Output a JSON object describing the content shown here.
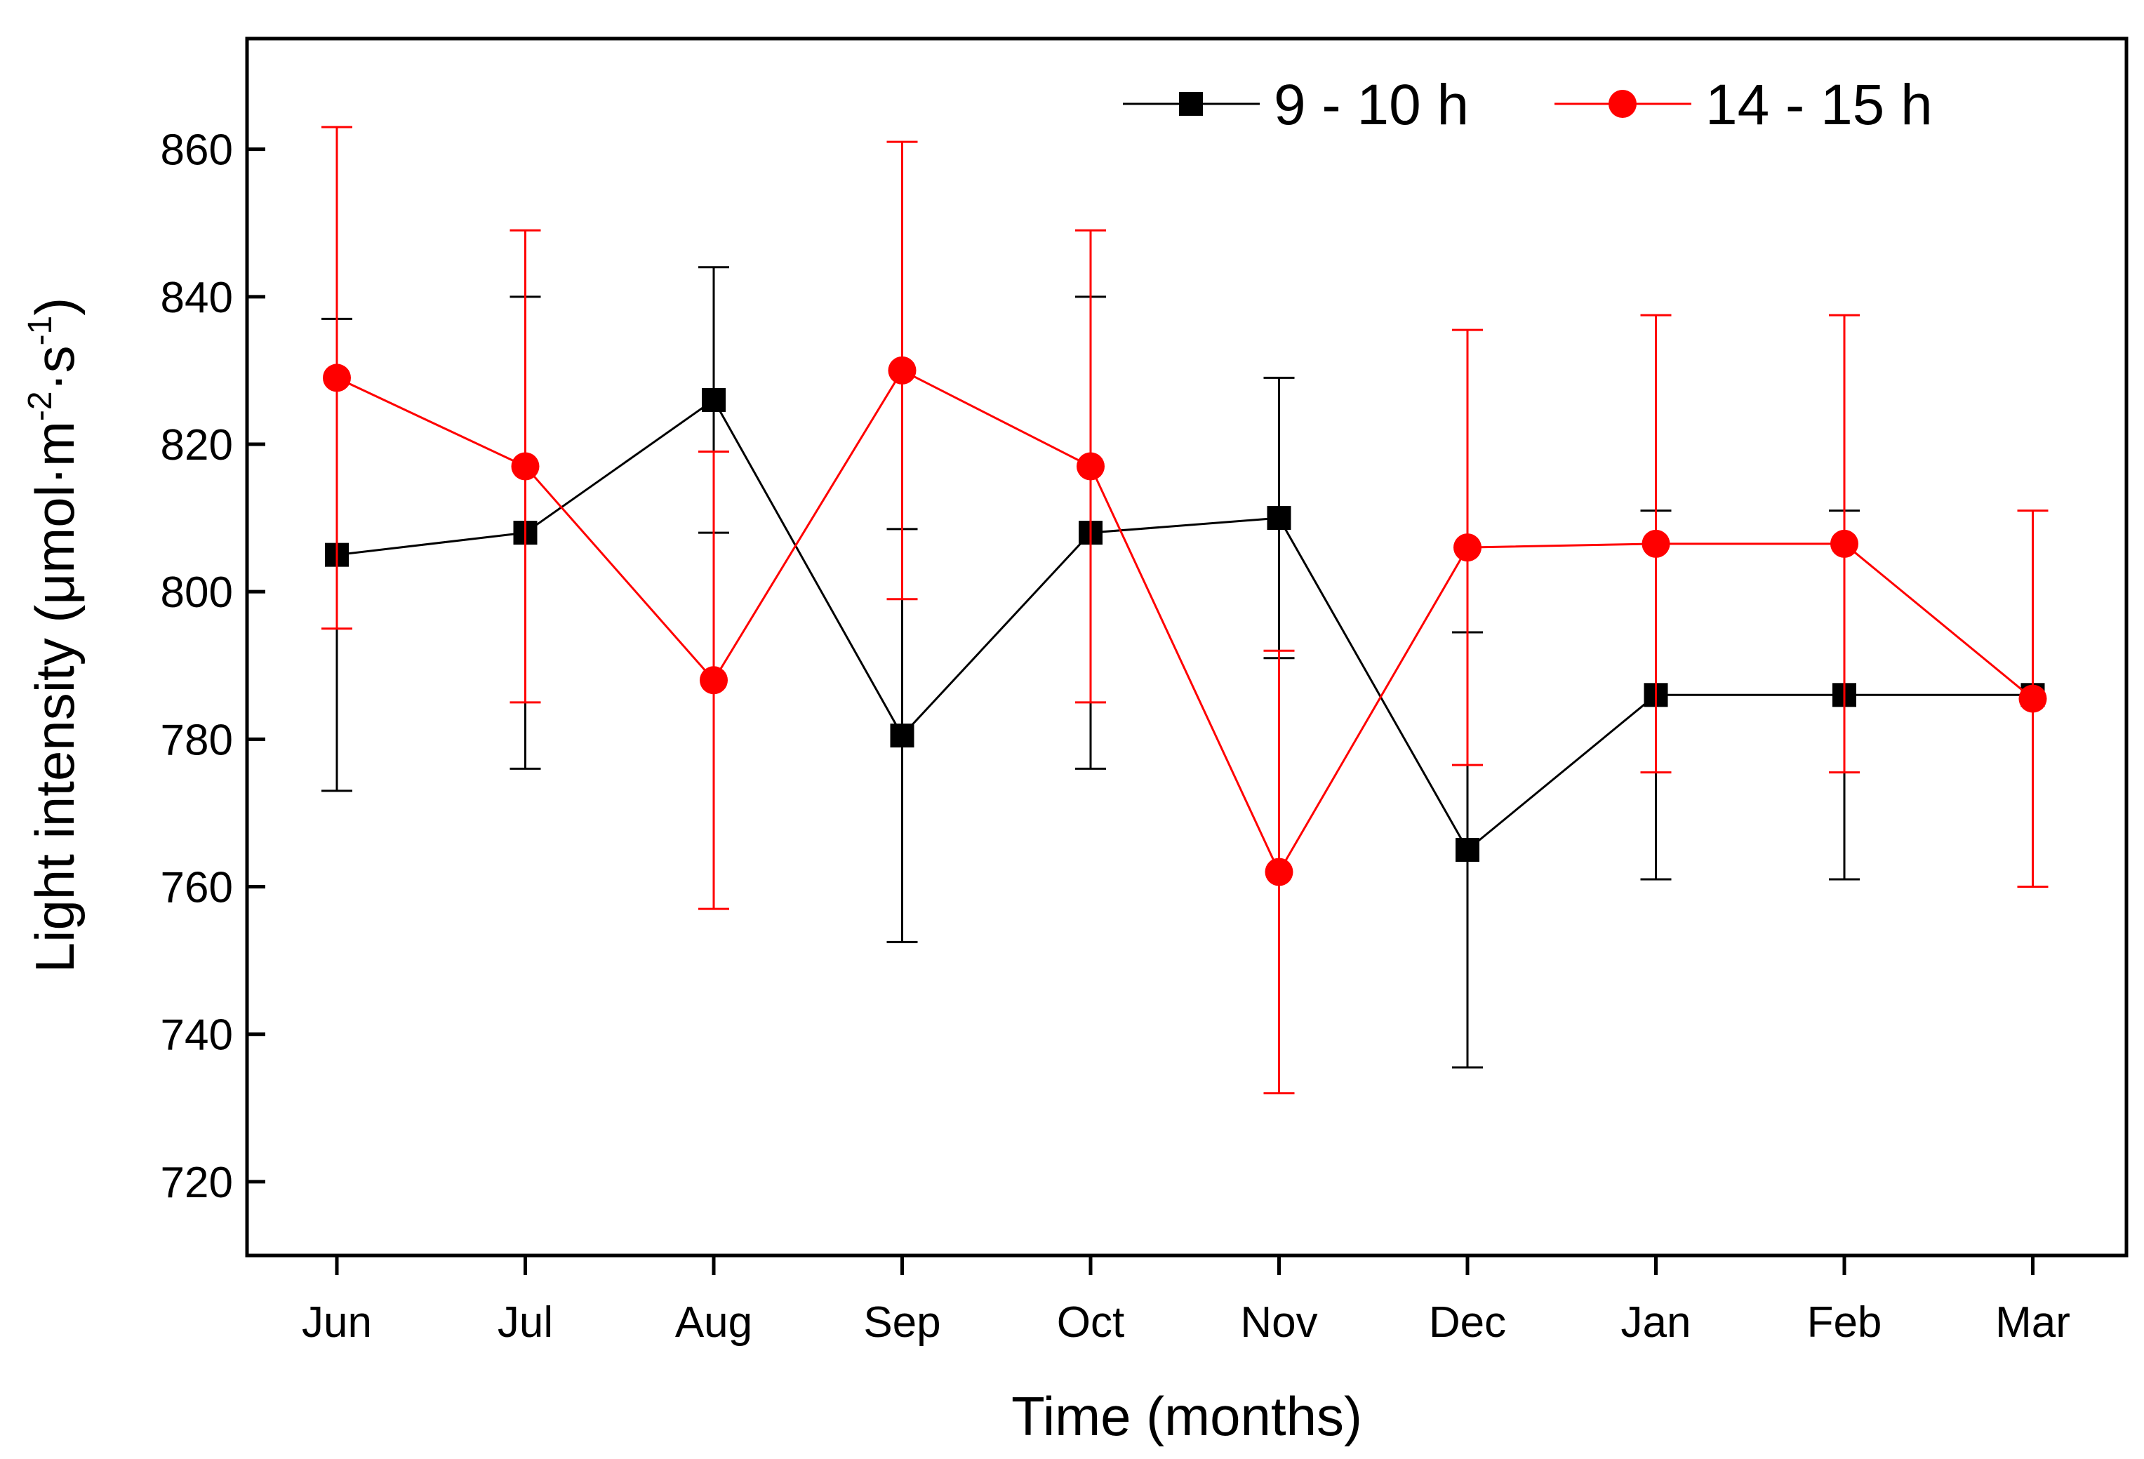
{
  "chart_data": {
    "type": "line",
    "xlabel": "Time (months)",
    "ylabel": {
      "main": "Light intensity (μmol·m",
      "exp1": "-2",
      "mid": "·s",
      "exp2": "-1",
      "end": ")"
    },
    "categories": [
      "Jun",
      "Jul",
      "Aug",
      "Sep",
      "Oct",
      "Nov",
      "Dec",
      "Jan",
      "Feb",
      "Mar"
    ],
    "ylim": [
      710,
      875
    ],
    "yticks": [
      720,
      740,
      760,
      780,
      800,
      820,
      840,
      860
    ],
    "legend_position": "top-right",
    "series": [
      {
        "name": "9 - 10 h",
        "color": "#000000",
        "marker": "square",
        "values": [
          805,
          808,
          826,
          780.5,
          808,
          810,
          765,
          786,
          786,
          786
        ],
        "errors": [
          32,
          32,
          18,
          28,
          32,
          19,
          29.5,
          25,
          25,
          0
        ]
      },
      {
        "name": "14 - 15 h",
        "color": "#ff0000",
        "marker": "circle",
        "values": [
          829,
          817,
          788,
          830,
          817,
          762,
          806,
          806.5,
          806.5,
          785.5
        ],
        "errors": [
          34,
          32,
          31,
          31,
          32,
          30,
          29.5,
          31,
          31,
          25.5
        ]
      }
    ]
  }
}
